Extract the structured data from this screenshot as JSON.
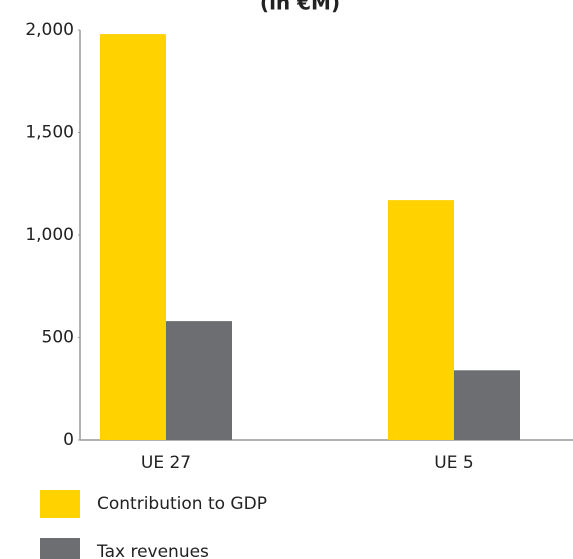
{
  "chart_data": {
    "type": "bar",
    "title": "(in €M)",
    "categories": [
      "UE 27",
      "UE 5"
    ],
    "series": [
      {
        "name": "Contribution to GDP",
        "color": "#ffd200",
        "values": [
          1980,
          1170
        ]
      },
      {
        "name": "Tax revenues",
        "color": "#6d6e71",
        "values": [
          580,
          340
        ]
      }
    ],
    "ylim": [
      0,
      2000
    ],
    "yticks": [
      0,
      500,
      {
        "value": 1000,
        "label": "1,000"
      },
      {
        "value": 1500,
        "label": "1,500"
      },
      {
        "value": 2000,
        "label": "2,000"
      }
    ],
    "grid": false
  }
}
